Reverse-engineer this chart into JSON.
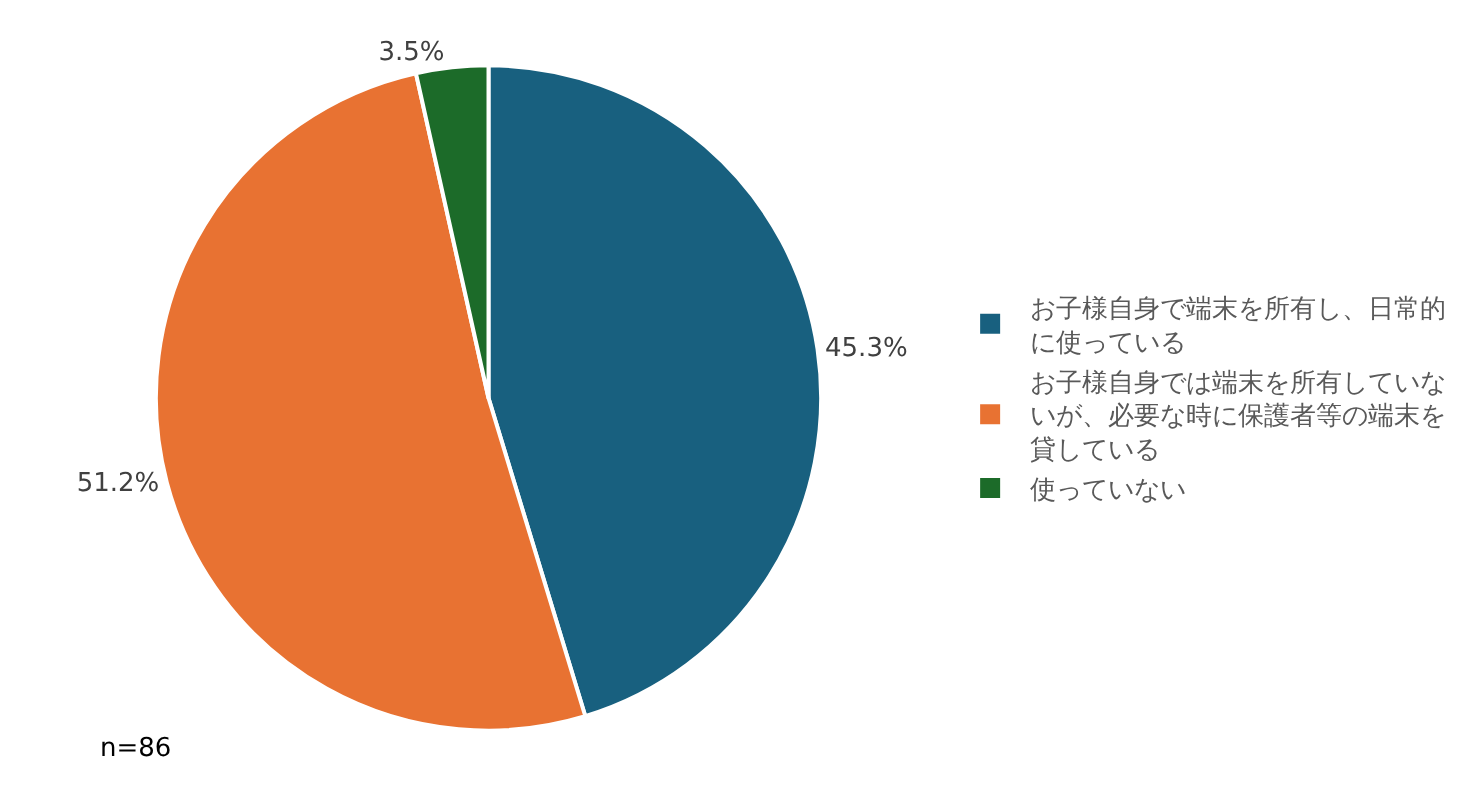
{
  "chart_data": {
    "type": "pie",
    "categories": [
      "お子様自身で端末を所有し、日常的に使っている",
      "お子様自身では端末を所有していないが、必要な時に保護者等の端末を貸している",
      "使っていない"
    ],
    "values": [
      45.3,
      51.2,
      3.5
    ],
    "value_labels": [
      "45.3%",
      "51.2%",
      "3.5%"
    ],
    "colors": [
      "#18607f",
      "#e87232",
      "#1c6b29"
    ],
    "legend": "right",
    "annotations": [
      "n=86"
    ]
  }
}
